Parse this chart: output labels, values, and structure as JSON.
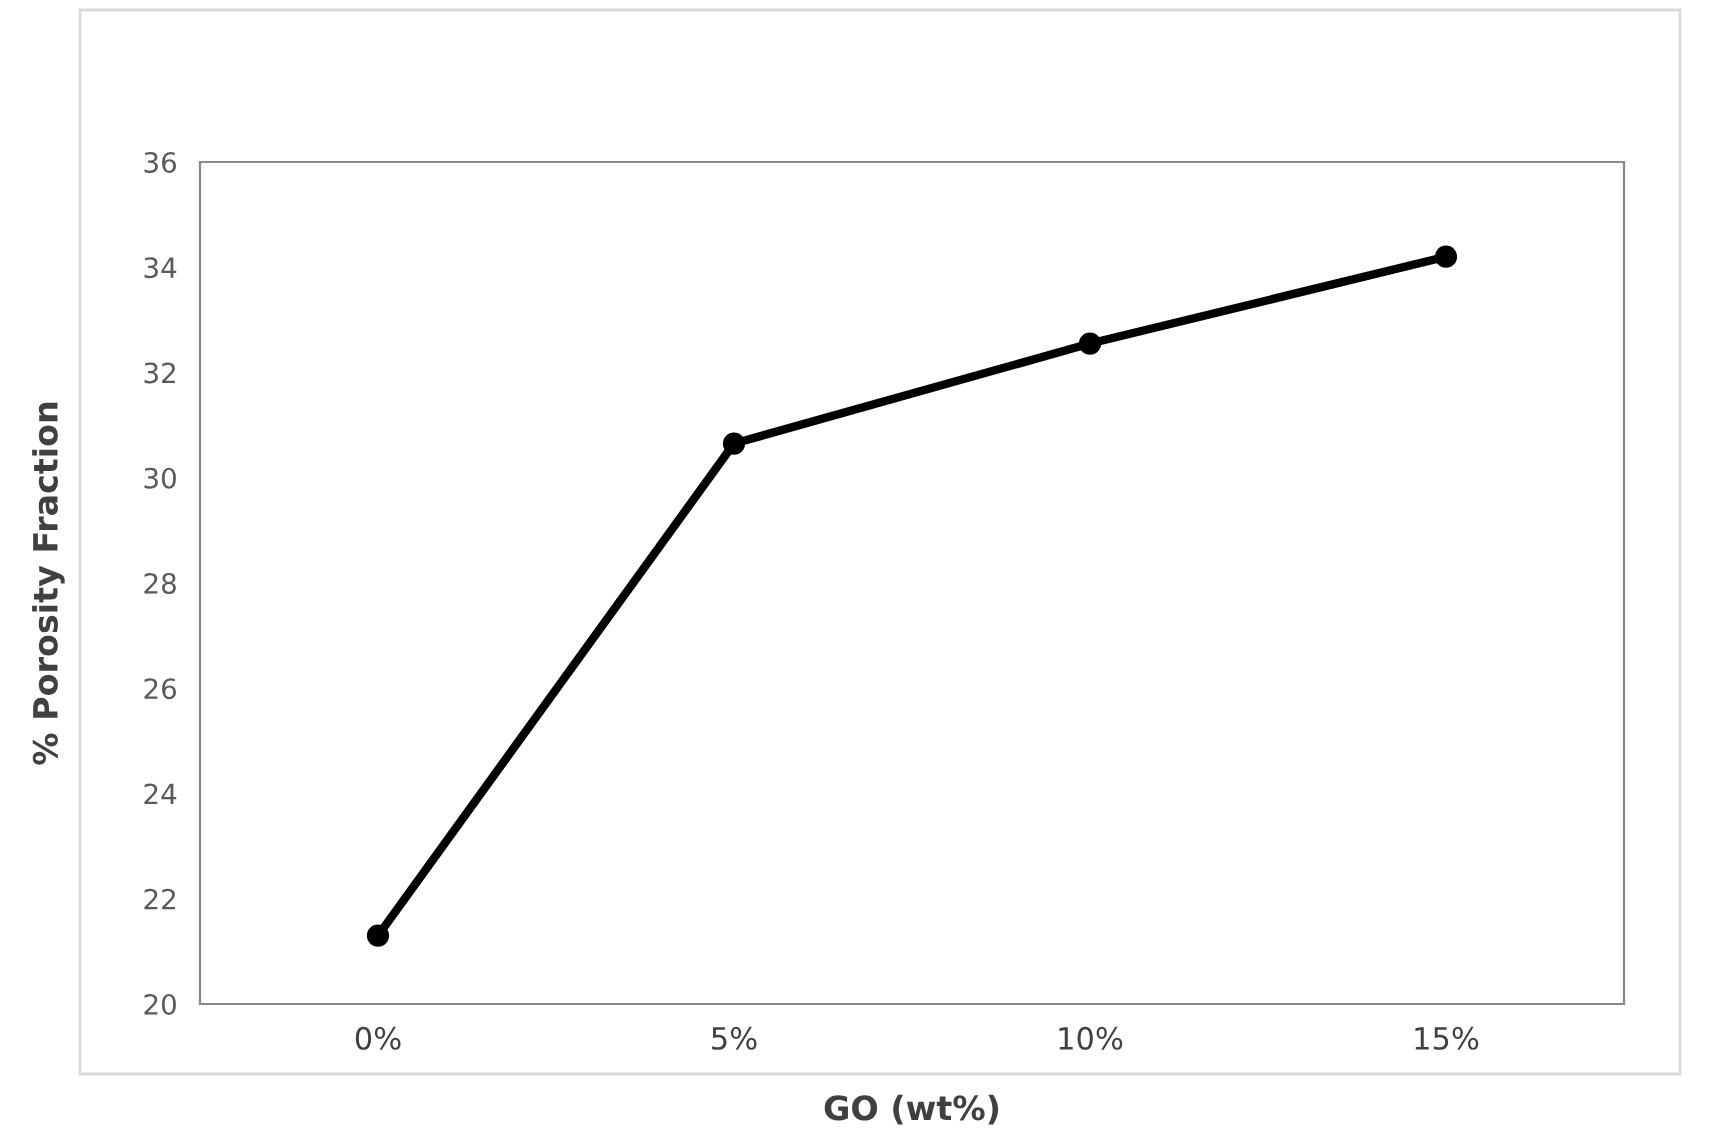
{
  "chart_data": {
    "type": "line",
    "xlabel": "GO (wt%)",
    "ylabel": "% Porosity Fraction",
    "categories": [
      "0%",
      "5%",
      "10%",
      "15%"
    ],
    "series": [
      {
        "color": "#000000",
        "values": [
          21.3,
          30.65,
          32.55,
          34.2
        ]
      }
    ],
    "ylim": [
      20,
      36
    ],
    "yticks": [
      20,
      22,
      24,
      26,
      28,
      30,
      32,
      34,
      36
    ],
    "marker": "circle",
    "line_style": "solid",
    "grid": false,
    "legend": false
  }
}
